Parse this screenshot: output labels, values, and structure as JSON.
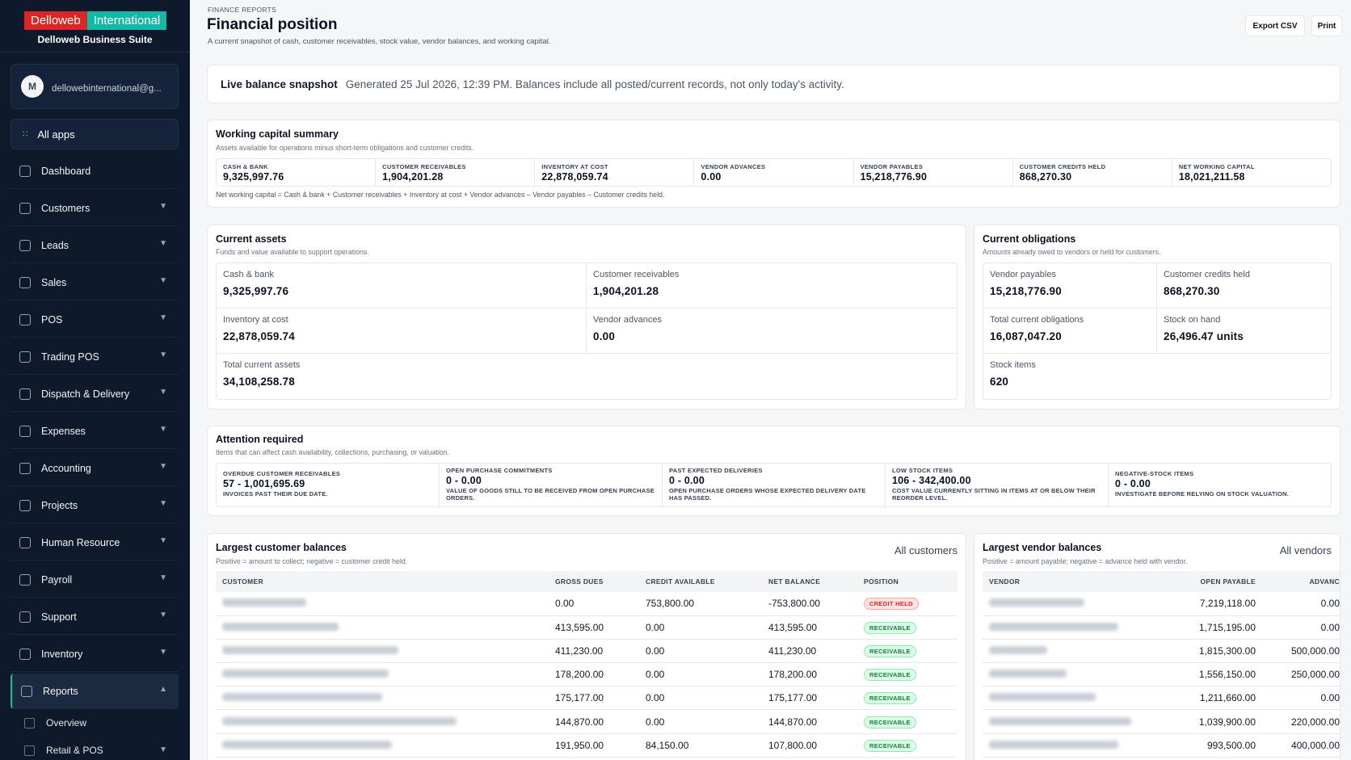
{
  "brand": {
    "name_a": "Delloweb",
    "name_b": "International",
    "suite": "Delloweb Business Suite"
  },
  "user": {
    "initial": "M",
    "email": "dellowebinternational@g..."
  },
  "sidebar": {
    "all_apps": "All apps",
    "items": [
      {
        "label": "Dashboard",
        "icon": "dashboard-icon"
      },
      {
        "label": "Customers",
        "icon": "customers-icon"
      },
      {
        "label": "Leads",
        "icon": "leads-icon"
      },
      {
        "label": "Sales",
        "icon": "sales-icon"
      },
      {
        "label": "POS",
        "icon": "pos-icon"
      },
      {
        "label": "Trading POS",
        "icon": "trading-pos-icon"
      },
      {
        "label": "Dispatch & Delivery",
        "icon": "delivery-icon"
      },
      {
        "label": "Expenses",
        "icon": "expenses-icon"
      },
      {
        "label": "Accounting",
        "icon": "accounting-icon"
      },
      {
        "label": "Projects",
        "icon": "projects-icon"
      },
      {
        "label": "Human Resource",
        "icon": "hr-icon"
      },
      {
        "label": "Payroll",
        "icon": "payroll-icon"
      },
      {
        "label": "Support",
        "icon": "support-icon"
      },
      {
        "label": "Inventory",
        "icon": "inventory-icon"
      },
      {
        "label": "Reports",
        "icon": "reports-icon"
      }
    ],
    "subitems": [
      {
        "label": "Overview"
      },
      {
        "label": "Retail & POS"
      }
    ]
  },
  "header": {
    "breadcrumb": "FINANCE REPORTS",
    "title": "Financial position",
    "subtitle": "A current snapshot of cash, customer receivables, stock value, vendor balances, and working capital.",
    "export_label": "Export CSV",
    "print_label": "Print"
  },
  "snapshot": {
    "title": "Live balance snapshot",
    "text": "Generated 25 Jul 2026, 12:39 PM. Balances include all posted/current records, not only today's activity."
  },
  "working_capital": {
    "title": "Working capital summary",
    "subtitle": "Assets available for operations minus short-term obligations and customer credits.",
    "metrics": [
      {
        "label": "CASH & BANK",
        "value": "9,325,997.76"
      },
      {
        "label": "CUSTOMER RECEIVABLES",
        "value": "1,904,201.28"
      },
      {
        "label": "INVENTORY AT COST",
        "value": "22,878,059.74"
      },
      {
        "label": "VENDOR ADVANCES",
        "value": "0.00"
      },
      {
        "label": "VENDOR PAYABLES",
        "value": "15,218,776.90"
      },
      {
        "label": "CUSTOMER CREDITS HELD",
        "value": "868,270.30"
      },
      {
        "label": "NET WORKING CAPITAL",
        "value": "18,021,211.58"
      }
    ],
    "note": "Net working capital = Cash & bank + Customer receivables + Inventory at cost + Vendor advances – Vendor payables – Customer credits held."
  },
  "current_assets": {
    "title": "Current assets",
    "subtitle": "Funds and value available to support operations.",
    "items": [
      {
        "label": "Cash & bank",
        "value": "9,325,997.76"
      },
      {
        "label": "Customer receivables",
        "value": "1,904,201.28"
      },
      {
        "label": "Inventory at cost",
        "value": "22,878,059.74"
      },
      {
        "label": "Vendor advances",
        "value": "0.00"
      },
      {
        "label": "Total current assets",
        "value": "34,108,258.78"
      }
    ]
  },
  "current_obligations": {
    "title": "Current obligations",
    "subtitle": "Amounts already owed to vendors or held for customers.",
    "items": [
      {
        "label": "Vendor payables",
        "value": "15,218,776.90"
      },
      {
        "label": "Customer credits held",
        "value": "868,270.30"
      },
      {
        "label": "Total current obligations",
        "value": "16,087,047.20"
      },
      {
        "label": "Stock on hand",
        "value": "26,496.47 units"
      },
      {
        "label": "Stock items",
        "value": "620"
      }
    ]
  },
  "attention": {
    "title": "Attention required",
    "subtitle": "Items that can affect cash availability, collections, purchasing, or valuation.",
    "items": [
      {
        "label": "OVERDUE CUSTOMER RECEIVABLES",
        "value": "57 - 1,001,695.69",
        "desc": "INVOICES PAST THEIR DUE DATE."
      },
      {
        "label": "OPEN PURCHASE COMMITMENTS",
        "value": "0 - 0.00",
        "desc": "VALUE OF GOODS STILL TO BE RECEIVED FROM OPEN PURCHASE ORDERS."
      },
      {
        "label": "PAST EXPECTED DELIVERIES",
        "value": "0 - 0.00",
        "desc": "OPEN PURCHASE ORDERS WHOSE EXPECTED DELIVERY DATE HAS PASSED."
      },
      {
        "label": "LOW STOCK ITEMS",
        "value": "106 - 342,400.00",
        "desc": "COST VALUE CURRENTLY SITTING IN ITEMS AT OR BELOW THEIR REORDER LEVEL."
      },
      {
        "label": "NEGATIVE-STOCK ITEMS",
        "value": "0 - 0.00",
        "desc": "INVESTIGATE BEFORE RELYING ON STOCK VALUATION."
      }
    ]
  },
  "customer_balances": {
    "title": "Largest customer balances",
    "subtitle": "Positive = amount to collect; negative = customer credit held.",
    "link": "All customers",
    "headers": [
      "CUSTOMER",
      "GROSS DUES",
      "CREDIT AVAILABLE",
      "NET BALANCE",
      "POSITION"
    ],
    "rows": [
      {
        "gross": "0.00",
        "credit": "753,800.00",
        "net": "-753,800.00",
        "position": "CREDIT HELD"
      },
      {
        "gross": "413,595.00",
        "credit": "0.00",
        "net": "413,595.00",
        "position": "RECEIVABLE"
      },
      {
        "gross": "411,230.00",
        "credit": "0.00",
        "net": "411,230.00",
        "position": "RECEIVABLE"
      },
      {
        "gross": "178,200.00",
        "credit": "0.00",
        "net": "178,200.00",
        "position": "RECEIVABLE"
      },
      {
        "gross": "175,177.00",
        "credit": "0.00",
        "net": "175,177.00",
        "position": "RECEIVABLE"
      },
      {
        "gross": "144,870.00",
        "credit": "0.00",
        "net": "144,870.00",
        "position": "RECEIVABLE"
      },
      {
        "gross": "191,950.00",
        "credit": "84,150.00",
        "net": "107,800.00",
        "position": "RECEIVABLE"
      }
    ]
  },
  "vendor_balances": {
    "title": "Largest vendor balances",
    "subtitle": "Positive = amount payable; negative = advance held with vendor.",
    "link": "All vendors",
    "headers": [
      "VENDOR",
      "OPEN PAYABLE",
      "ADVANC"
    ],
    "rows": [
      {
        "payable": "7,219,118.00",
        "advance": "0.00"
      },
      {
        "payable": "1,715,195.00",
        "advance": "0.00"
      },
      {
        "payable": "1,815,300.00",
        "advance": "500,000.00"
      },
      {
        "payable": "1,556,150.00",
        "advance": "250,000.00"
      },
      {
        "payable": "1,211,660.00",
        "advance": "0.00"
      },
      {
        "payable": "1,039,900.00",
        "advance": "220,000.00"
      },
      {
        "payable": "993,500.00",
        "advance": "400,000.00"
      }
    ]
  },
  "colors": {
    "sidebar_bg": "#0e1a2b",
    "brand_red": "#dc2626",
    "brand_teal": "#14b8a6"
  }
}
